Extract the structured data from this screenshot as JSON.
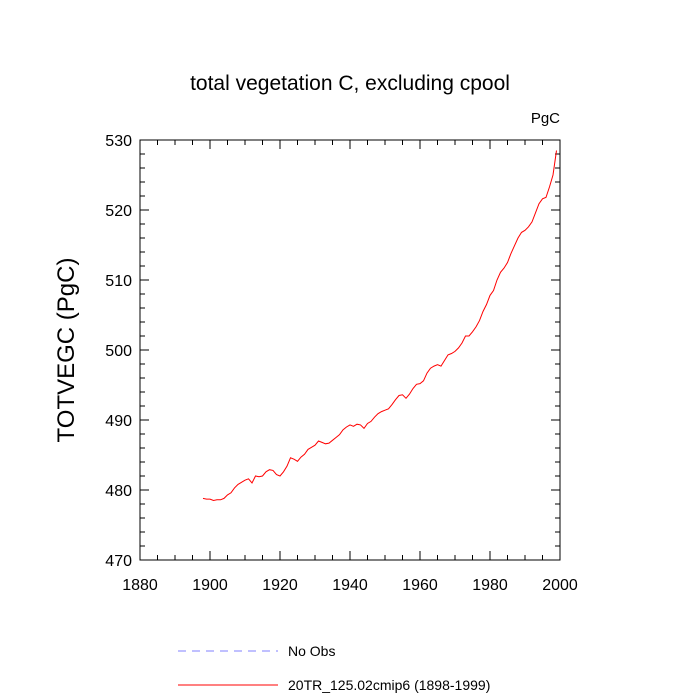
{
  "chart_data": {
    "type": "line",
    "title": "total vegetation C, excluding cpool",
    "units_label": "PgC",
    "xlabel": "",
    "ylabel": "TOTVEGC  (PgC)",
    "xlim": [
      1880,
      2000
    ],
    "ylim": [
      470,
      530
    ],
    "x_ticks": [
      1880,
      1900,
      1920,
      1940,
      1960,
      1980,
      2000
    ],
    "y_ticks": [
      470,
      480,
      490,
      500,
      510,
      520,
      530
    ],
    "grid": false,
    "legend_position": "bottom",
    "series": [
      {
        "name": "No Obs",
        "color": "#8080ff",
        "style": "dashed",
        "x": [],
        "y": []
      },
      {
        "name": "20TR_125.02cmip6 (1898-1999)",
        "color": "#ff0000",
        "style": "solid",
        "x": [
          1898,
          1899,
          1900,
          1901,
          1902,
          1903,
          1904,
          1905,
          1906,
          1907,
          1908,
          1909,
          1910,
          1911,
          1912,
          1913,
          1914,
          1915,
          1916,
          1917,
          1918,
          1919,
          1920,
          1921,
          1922,
          1923,
          1924,
          1925,
          1926,
          1927,
          1928,
          1929,
          1930,
          1931,
          1932,
          1933,
          1934,
          1935,
          1936,
          1937,
          1938,
          1939,
          1940,
          1941,
          1942,
          1943,
          1944,
          1945,
          1946,
          1947,
          1948,
          1949,
          1950,
          1951,
          1952,
          1953,
          1954,
          1955,
          1956,
          1957,
          1958,
          1959,
          1960,
          1961,
          1962,
          1963,
          1964,
          1965,
          1966,
          1967,
          1968,
          1969,
          1970,
          1971,
          1972,
          1973,
          1974,
          1975,
          1976,
          1977,
          1978,
          1979,
          1980,
          1981,
          1982,
          1983,
          1984,
          1985,
          1986,
          1987,
          1988,
          1989,
          1990,
          1991,
          1992,
          1993,
          1994,
          1995,
          1996,
          1997,
          1998,
          1999
        ],
        "y": [
          478.8,
          478.7,
          478.7,
          478.5,
          478.6,
          478.6,
          478.8,
          479.3,
          479.6,
          480.3,
          480.8,
          481.1,
          481.4,
          481.6,
          481.0,
          482.0,
          481.9,
          482.0,
          482.6,
          482.9,
          482.8,
          482.2,
          482.0,
          482.6,
          483.4,
          484.6,
          484.4,
          484.1,
          484.7,
          485.1,
          485.8,
          486.1,
          486.4,
          487.0,
          486.8,
          486.6,
          486.7,
          487.1,
          487.5,
          487.9,
          488.6,
          489.0,
          489.3,
          489.1,
          489.4,
          489.3,
          488.8,
          489.5,
          489.8,
          490.4,
          490.9,
          491.2,
          491.4,
          491.6,
          492.2,
          492.9,
          493.5,
          493.6,
          493.1,
          493.7,
          494.5,
          495.1,
          495.2,
          495.6,
          496.7,
          497.4,
          497.7,
          497.9,
          497.7,
          498.5,
          499.3,
          499.5,
          499.8,
          500.3,
          501.0,
          502.0,
          502.0,
          502.6,
          503.3,
          504.2,
          505.5,
          506.5,
          507.8,
          508.5,
          510.0,
          511.1,
          511.7,
          512.5,
          513.8,
          514.9,
          516.0,
          516.8,
          517.1,
          517.6,
          518.3,
          519.6,
          520.9,
          521.6,
          521.8,
          523.3,
          525.0,
          528.5
        ]
      }
    ]
  }
}
